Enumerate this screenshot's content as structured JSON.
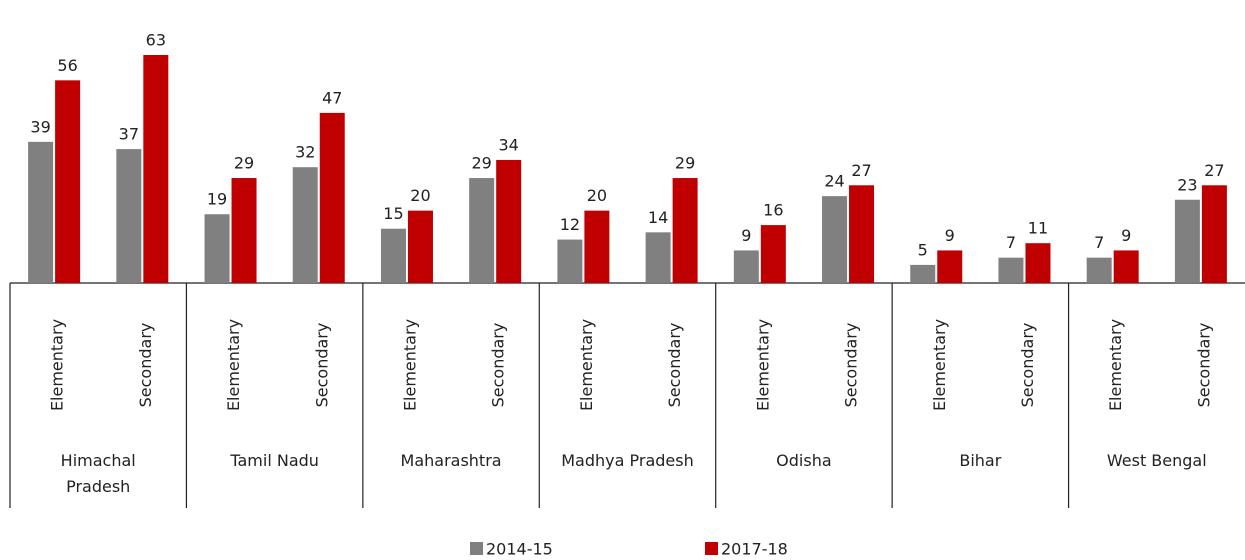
{
  "chart_data": {
    "type": "bar",
    "groups": [
      "Himachal Pradesh",
      "Tamil Nadu",
      "Maharashtra",
      "Madhya Pradesh",
      "Odisha",
      "Bihar",
      "West Bengal"
    ],
    "categories": [
      "Elementary",
      "Secondary",
      "Elementary",
      "Secondary",
      "Elementary",
      "Secondary",
      "Elementary",
      "Secondary",
      "Elementary",
      "Secondary",
      "Elementary",
      "Secondary",
      "Elementary",
      "Secondary"
    ],
    "series": [
      {
        "name": "2014-15",
        "color": "#808080",
        "values": [
          39,
          37,
          19,
          32,
          15,
          29,
          12,
          14,
          9,
          24,
          5,
          7,
          7,
          23
        ]
      },
      {
        "name": "2017-18",
        "color": "#c00000",
        "values": [
          56,
          63,
          29,
          47,
          20,
          34,
          20,
          29,
          16,
          27,
          9,
          11,
          9,
          27
        ]
      }
    ]
  }
}
